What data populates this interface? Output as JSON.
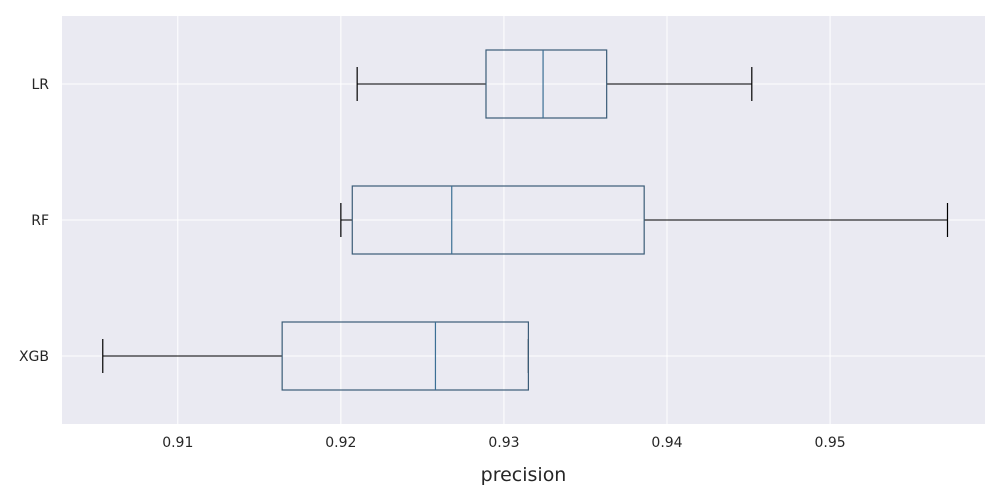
{
  "colors": {
    "background": "#eaeaf2",
    "grid": "#ffffff",
    "box_edge": "#3b5c77",
    "median": "#3b6f95",
    "whisker": "#000000"
  },
  "chart_data": {
    "type": "boxplot",
    "orientation": "horizontal",
    "xlabel": "precision",
    "ylabel": "",
    "title": "",
    "xlim": [
      0.9029,
      0.9595
    ],
    "x_ticks": [
      0.91,
      0.92,
      0.93,
      0.94,
      0.95
    ],
    "x_tick_labels": [
      "0.91",
      "0.92",
      "0.93",
      "0.94",
      "0.95"
    ],
    "grid": true,
    "categories": [
      "LR",
      "RF",
      "XGB"
    ],
    "boxes": [
      {
        "label": "LR",
        "whisker_low": 0.921,
        "q1": 0.9289,
        "median": 0.9324,
        "q3": 0.9363,
        "whisker_high": 0.9452
      },
      {
        "label": "RF",
        "whisker_low": 0.92,
        "q1": 0.9207,
        "median": 0.9268,
        "q3": 0.9386,
        "whisker_high": 0.9572
      },
      {
        "label": "XGB",
        "whisker_low": 0.9054,
        "q1": 0.9164,
        "median": 0.9258,
        "q3": 0.9315,
        "whisker_high": 0.9315
      }
    ]
  }
}
